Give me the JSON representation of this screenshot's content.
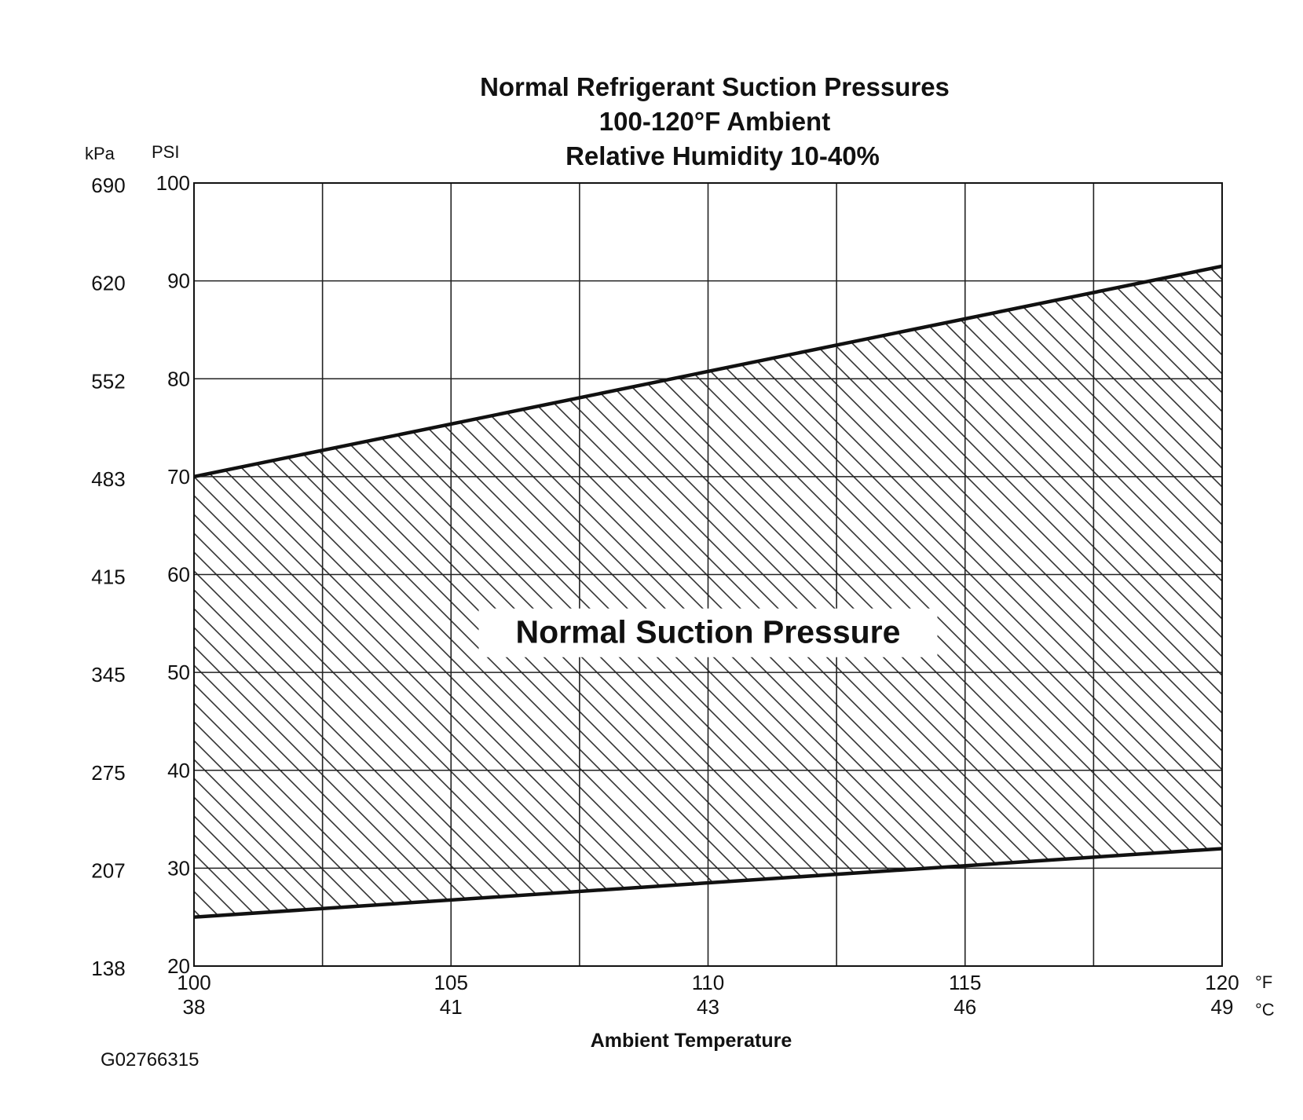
{
  "figure_id": "G02766315",
  "chart_data": {
    "type": "area",
    "title": [
      "Normal  Refrigerant  Suction  Pressures",
      "100-120°F Ambient",
      "Relative Humidity 10-40%"
    ],
    "xlabel": "Ambient Temperature",
    "x_unit_f": "°F",
    "x_unit_c": "°C",
    "y_unit_kpa": "kPa",
    "y_unit_psi": "PSI",
    "xlim": [
      100,
      120
    ],
    "ylim": [
      20,
      100
    ],
    "x_ticks_f": [
      "100",
      "105",
      "110",
      "115",
      "120"
    ],
    "x_ticks_c": [
      "38",
      "41",
      "43",
      "46",
      "49"
    ],
    "x_tick_values": [
      100,
      105,
      110,
      115,
      120
    ],
    "y_ticks_psi": [
      "100",
      "90",
      "80",
      "70",
      "60",
      "50",
      "40",
      "30",
      "20"
    ],
    "y_ticks_kpa": [
      "690",
      "620",
      "552",
      "483",
      "415",
      "345",
      "275",
      "207",
      "138"
    ],
    "y_tick_values": [
      100,
      90,
      80,
      70,
      60,
      50,
      40,
      30,
      20
    ],
    "x_grid": [
      100,
      102.5,
      105,
      107.5,
      110,
      112.5,
      115,
      117.5,
      120
    ],
    "y_grid": [
      100,
      90,
      80,
      70,
      60,
      50,
      40,
      30,
      20
    ],
    "grid": true,
    "series": [
      {
        "name": "upper",
        "x": [
          100,
          120
        ],
        "y": [
          70,
          91.5
        ]
      },
      {
        "name": "lower",
        "x": [
          100,
          120
        ],
        "y": [
          25,
          32
        ]
      }
    ],
    "region_label": "Normal Suction Pressure",
    "region_label_at": {
      "x": 110,
      "y": 53
    },
    "colors": {
      "line": "#111111",
      "grid": "#222222",
      "hatch": "#333333",
      "background": "#ffffff"
    }
  }
}
